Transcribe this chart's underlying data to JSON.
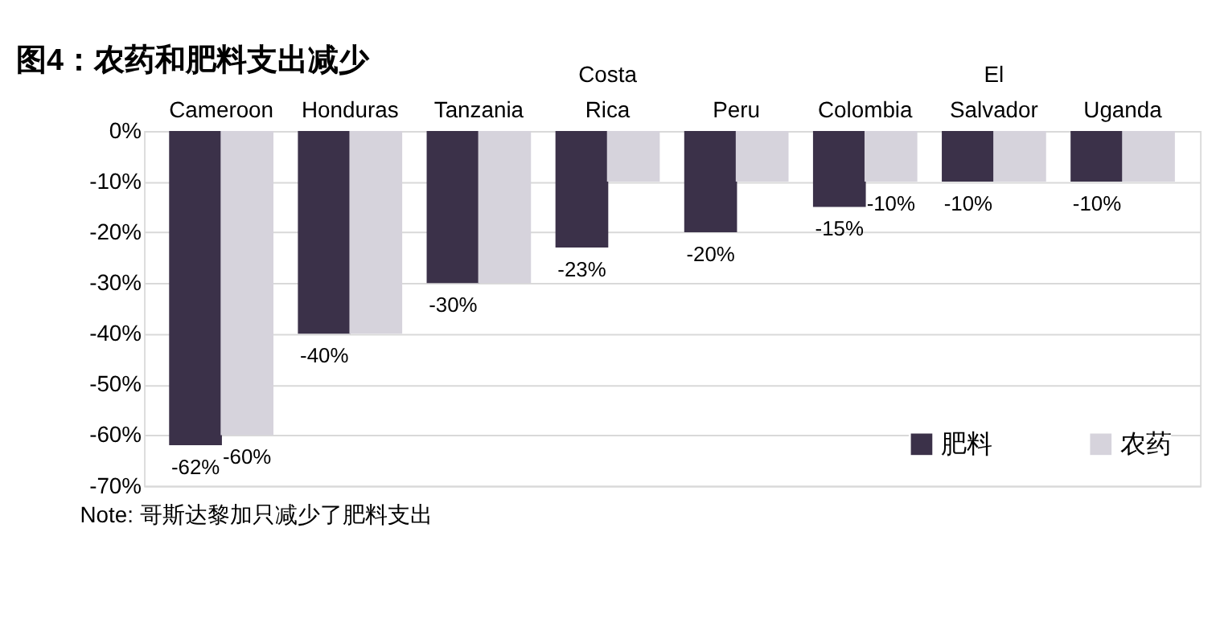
{
  "chart_data": {
    "type": "bar",
    "title": "图4：农药和肥料支出减少",
    "categories": [
      "Cameroon",
      "Honduras",
      "Tanzania",
      "Costa Rica",
      "Peru",
      "Colombia",
      "El Salvador",
      "Uganda"
    ],
    "series": [
      {
        "name": "肥料",
        "color": "#3b3149",
        "values": [
          -62,
          -40,
          -30,
          -23,
          -20,
          -15,
          -10,
          -10
        ],
        "value_labels": [
          "-62%",
          "-40%",
          "-30%",
          "-23%",
          "-20%",
          "-15%",
          "-10%",
          "-10%"
        ]
      },
      {
        "name": "农药",
        "color": "#d6d3dc",
        "values": [
          -60,
          -40,
          -30,
          -10,
          -10,
          -10,
          -10,
          -10
        ],
        "value_labels": [
          "-60%",
          null,
          null,
          null,
          null,
          "-10%",
          null,
          null
        ]
      }
    ],
    "ylim": [
      -70,
      0
    ],
    "yticks": [
      {
        "value": -70,
        "label": "-70%"
      },
      {
        "value": -60,
        "label": "-60%"
      },
      {
        "value": -50,
        "label": "-50%"
      },
      {
        "value": -40,
        "label": "-40%"
      },
      {
        "value": -30,
        "label": "-30%"
      },
      {
        "value": -20,
        "label": "-20%"
      },
      {
        "value": -10,
        "label": "-10%"
      },
      {
        "value": 0,
        "label": "0%"
      }
    ],
    "grid": "y",
    "legend": "bottom right",
    "annotations": [
      "Note: 哥斯达黎加只减少了肥料支出"
    ]
  }
}
